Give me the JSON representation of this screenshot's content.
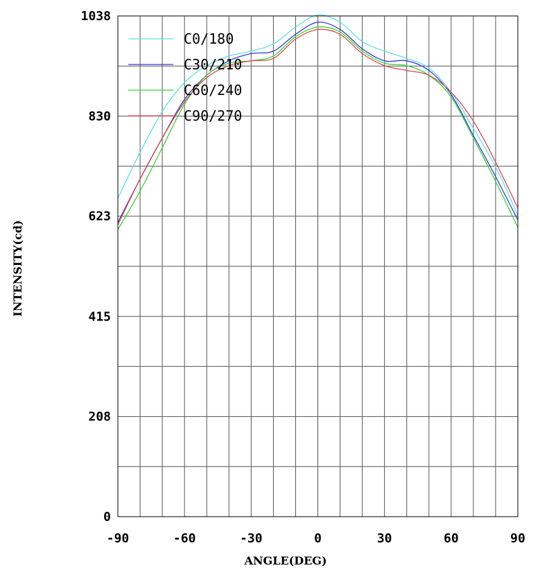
{
  "chart_data": {
    "type": "line",
    "title": "",
    "xlabel": "ANGLE(DEG)",
    "ylabel": "INTENSITY(cd)",
    "xlim": [
      -90,
      90
    ],
    "ylim": [
      0,
      1038
    ],
    "x_ticks": [
      -90,
      -60,
      -30,
      0,
      30,
      60,
      90
    ],
    "y_ticks": [
      0,
      208,
      415,
      623,
      830,
      1038
    ],
    "x_tick_labels": [
      "-90",
      "-60",
      "-30",
      "0",
      "30",
      "60",
      "90"
    ],
    "y_tick_labels": [
      "0",
      "208",
      "415",
      "623",
      "830",
      "1038"
    ],
    "grid": true,
    "legend_position": "top-left",
    "x": [
      -90,
      -80,
      -70,
      -60,
      -50,
      -40,
      -30,
      -20,
      -10,
      0,
      10,
      20,
      30,
      40,
      50,
      60,
      70,
      80,
      90
    ],
    "series": [
      {
        "name": "C0/180",
        "color": "#5ee0e8",
        "values": [
          660,
          755,
          840,
          900,
          935,
          955,
          965,
          980,
          1015,
          1040,
          1025,
          985,
          965,
          950,
          930,
          880,
          805,
          725,
          625
        ]
      },
      {
        "name": "C30/210",
        "color": "#3a3ad8",
        "values": [
          610,
          700,
          785,
          865,
          915,
          945,
          960,
          965,
          1000,
          1025,
          1010,
          970,
          945,
          945,
          925,
          875,
          790,
          705,
          615
        ]
      },
      {
        "name": "C60/240",
        "color": "#33d633",
        "values": [
          595,
          675,
          765,
          855,
          915,
          940,
          945,
          955,
          995,
          1015,
          1005,
          965,
          940,
          935,
          915,
          870,
          785,
          695,
          600
        ]
      },
      {
        "name": "C90/270",
        "color": "#e04848",
        "values": [
          605,
          700,
          785,
          860,
          910,
          935,
          945,
          950,
          990,
          1010,
          1000,
          960,
          935,
          925,
          915,
          880,
          820,
          735,
          640
        ]
      }
    ]
  }
}
